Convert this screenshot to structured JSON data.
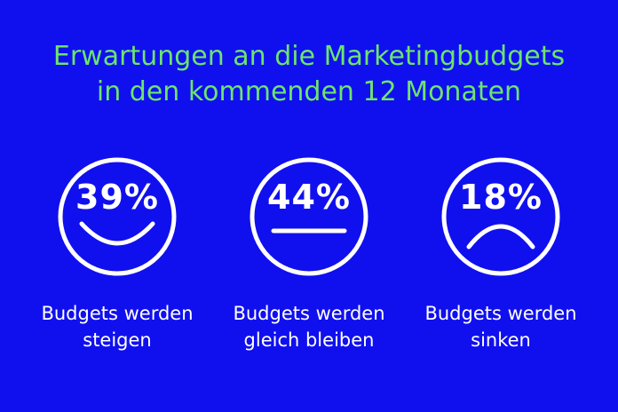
{
  "title": {
    "line1": "Erwartungen an die Marketingbudgets",
    "line2": "in den kommenden 12 Monaten"
  },
  "items": [
    {
      "percent": "39%",
      "mood": "smile-icon",
      "label_line1": "Budgets werden",
      "label_line2": "steigen"
    },
    {
      "percent": "44%",
      "mood": "neutral-icon",
      "label_line1": "Budgets werden",
      "label_line2": "gleich bleiben"
    },
    {
      "percent": "18%",
      "mood": "frown-icon",
      "label_line1": "Budgets werden",
      "label_line2": "sinken"
    }
  ],
  "colors": {
    "background": "#1010ee",
    "title": "#6de46d",
    "foreground": "#ffffff"
  }
}
